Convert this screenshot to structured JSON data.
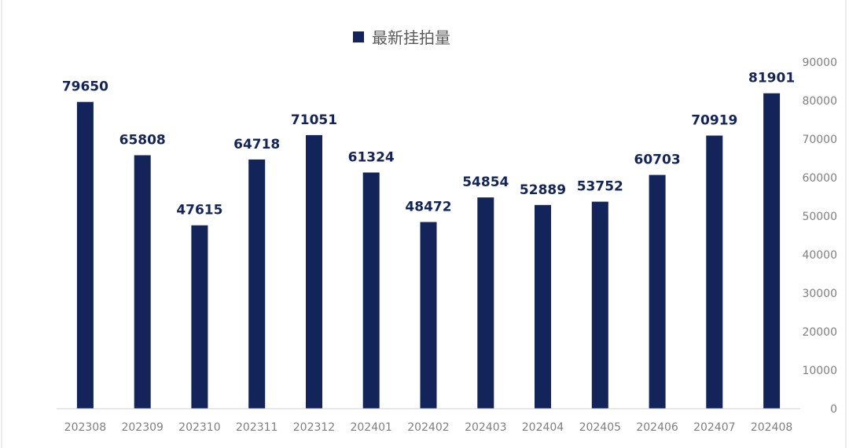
{
  "chart_data": {
    "type": "bar",
    "title": "",
    "categories": [
      "202308",
      "202309",
      "202310",
      "202311",
      "202312",
      "202401",
      "202402",
      "202403",
      "202404",
      "202405",
      "202406",
      "202407",
      "202408"
    ],
    "series": [
      {
        "name": "最新挂拍量",
        "values": [
          79650,
          65808,
          47615,
          64718,
          71051,
          61324,
          48472,
          54854,
          52889,
          53752,
          60703,
          70919,
          81901
        ],
        "color": "#12245a"
      }
    ],
    "ylim": [
      0,
      90000
    ],
    "yticks": [
      0,
      10000,
      20000,
      30000,
      40000,
      50000,
      60000,
      70000,
      80000,
      90000
    ],
    "y_axis_side": "right",
    "legend": "top-center",
    "grid": false,
    "data_labels": true
  }
}
